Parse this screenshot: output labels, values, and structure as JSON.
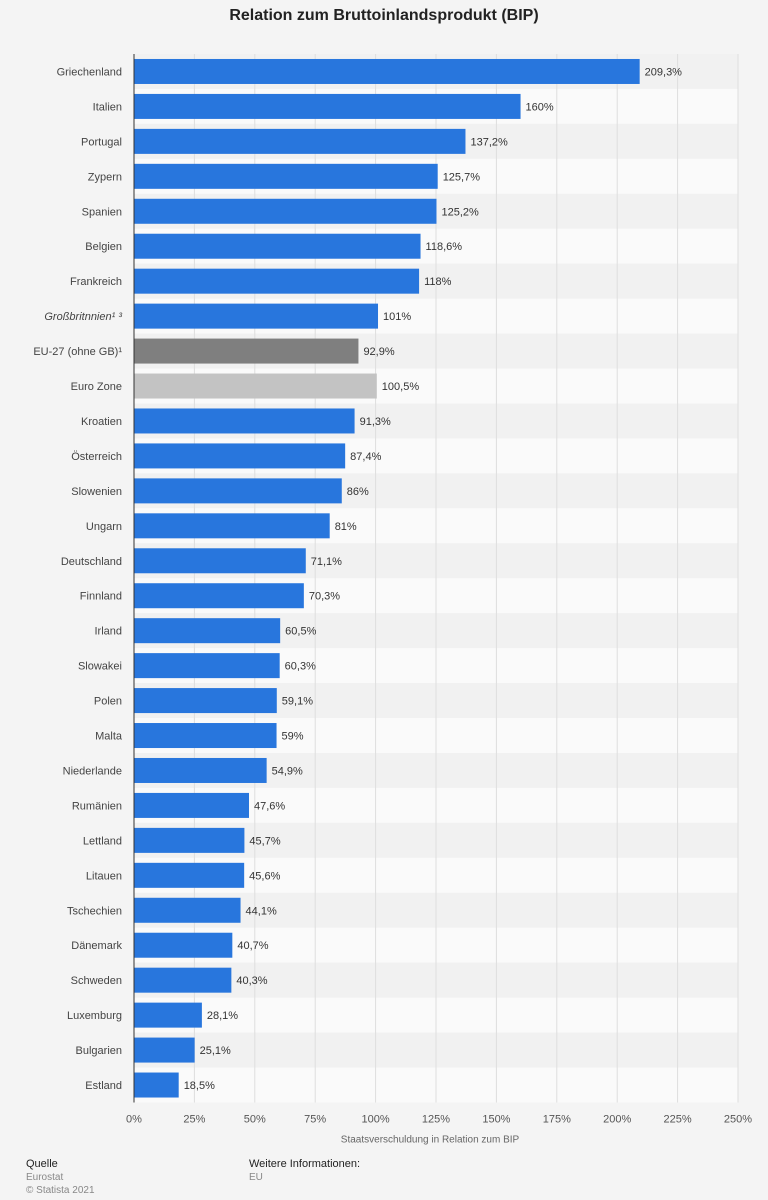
{
  "chart_data": {
    "type": "bar",
    "orientation": "horizontal",
    "title": "Relation zum Bruttoinlandsprodukt (BIP)",
    "xlabel": "Staatsverschuldung in Relation zum BIP",
    "ylabel": "",
    "xlim": [
      0,
      250
    ],
    "x_ticks": [
      "0%",
      "25%",
      "50%",
      "75%",
      "100%",
      "125%",
      "150%",
      "175%",
      "200%",
      "225%",
      "250%"
    ],
    "grid": true,
    "categories": [
      "Griechenland",
      "Italien",
      "Portugal",
      "Zypern",
      "Spanien",
      "Belgien",
      "Frankreich",
      "Großbritnnien¹ ³",
      "EU-27 (ohne GB)¹",
      "Euro Zone",
      "Kroatien",
      "Österreich",
      "Slowenien",
      "Ungarn",
      "Deutschland",
      "Finnland",
      "Irland",
      "Slowakei",
      "Polen",
      "Malta",
      "Niederlande",
      "Rumänien",
      "Lettland",
      "Litauen",
      "Tschechien",
      "Dänemark",
      "Schweden",
      "Luxemburg",
      "Bulgarien",
      "Estland"
    ],
    "values": [
      209.3,
      160,
      137.2,
      125.7,
      125.2,
      118.6,
      118,
      101,
      92.9,
      100.5,
      91.3,
      87.4,
      86,
      81,
      71.1,
      70.3,
      60.5,
      60.3,
      59.1,
      59,
      54.9,
      47.6,
      45.7,
      45.6,
      44.1,
      40.7,
      40.3,
      28.1,
      25.1,
      18.5
    ],
    "value_labels": [
      "209,3%",
      "160%",
      "137,2%",
      "125,7%",
      "125,2%",
      "118,6%",
      "118%",
      "101%",
      "92,9%",
      "100,5%",
      "91,3%",
      "87,4%",
      "86%",
      "81%",
      "71,1%",
      "70,3%",
      "60,5%",
      "60,3%",
      "59,1%",
      "59%",
      "54,9%",
      "47,6%",
      "45,7%",
      "45,6%",
      "44,1%",
      "40,7%",
      "40,3%",
      "28,1%",
      "25,1%",
      "18,5%"
    ],
    "italic_categories": [
      "Großbritnnien¹ ³"
    ],
    "bar_colors": {
      "default": "#2876dd",
      "EU-27 (ohne GB)¹": "#7f7f7f",
      "Euro Zone": "#c3c3c3"
    }
  },
  "footer": {
    "source_heading": "Quelle",
    "source_value": "Eurostat",
    "copyright": "© Statista 2021",
    "info_heading": "Weitere Informationen:",
    "info_value": "EU"
  }
}
